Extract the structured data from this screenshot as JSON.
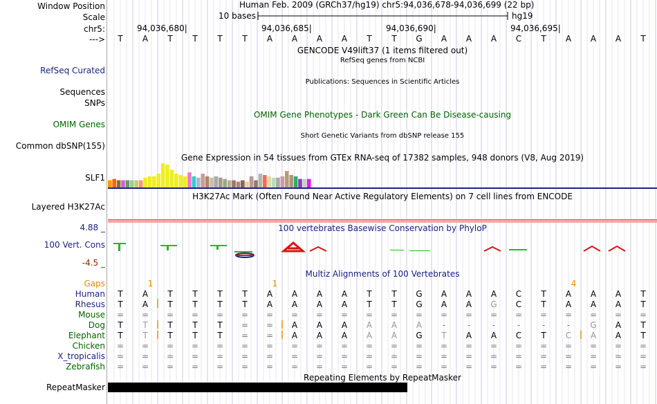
{
  "colors": {
    "navy": "#1a237e",
    "green": "#006400",
    "orange": "#e68a00",
    "red": "#dd1111",
    "divider": "#1a237e",
    "pink": "#f4a8a8"
  },
  "header": {
    "window_position_label": "Window Position",
    "window_position_value": "Human Feb. 2009 (GRCh37/hg19)   chr5:94,036,678-94,036,699 (22 bp)",
    "scale_label": "Scale",
    "scale_value": "10 bases",
    "scale_assembly": "hg19",
    "chrom_label": "chr5:",
    "coords": [
      "94,036,680",
      "94,036,685",
      "94,036,690",
      "94,036,695"
    ],
    "strand_label": "--->"
  },
  "reference_bases": [
    "T",
    "A",
    "T",
    "T",
    "T",
    "T",
    "A",
    "A",
    "A",
    "A",
    "T",
    "T",
    "G",
    "A",
    "A",
    "A",
    "C",
    "T",
    "A",
    "A",
    "A",
    "T"
  ],
  "tracks": {
    "gencode_title": "GENCODE V49lift37 (1 items filtered out)",
    "refseq_subtitle": "RefSeq genes from NCBI",
    "refseq_label": "RefSeq Curated",
    "publications_title": "Publications: Sequences in Scientific Articles",
    "sequences_label": "Sequences",
    "snps_label": "SNPs",
    "omim_title": "OMIM Gene Phenotypes - Dark Green Can Be Disease-causing",
    "omim_label": "OMIM Genes",
    "dbsnp_title": "Short Genetic Variants from dbSNP release 155",
    "dbsnp_label": "Common dbSNP(155)",
    "gtex_title": "Gene Expression in 54 tissues from GTEx RNA-seq of 17382 samples, 948 donors (V8, Aug 2019)",
    "gtex_gene_label": "SLF1",
    "gtex_colors": [
      "#ff9900",
      "#ff6600",
      "#996633",
      "#cc66cc",
      "#669966",
      "#99cc99",
      "#cccc66",
      "#ff9966",
      "#eeee22",
      "#eeee22",
      "#eeee22",
      "#eeee22",
      "#eeee22",
      "#eeee22",
      "#eeee22",
      "#eeee22",
      "#eeee22",
      "#eeee22",
      "#ee77cc",
      "#33cccc",
      "#aabbcc",
      "#cc9999",
      "#aa8866",
      "#ccbbaa",
      "#aaaaaa",
      "#aa9988",
      "#99aa88",
      "#bbaa99",
      "#997766",
      "#aa8877",
      "#886655",
      "#ffcc99",
      "#bb9999",
      "#997766",
      "#aabbaa",
      "#ff6655",
      "#ddddaa",
      "#bbddbb",
      "#aaaaaa",
      "#cc99aa",
      "#bb9977",
      "#aa9977",
      "#33aa66",
      "#8844aa",
      "#cccccc",
      "#dd22dd"
    ],
    "gtex_values": [
      0.3,
      0.35,
      0.3,
      0.3,
      0.3,
      0.3,
      0.3,
      0.3,
      0.4,
      0.45,
      0.45,
      0.55,
      0.95,
      0.9,
      0.7,
      0.55,
      0.5,
      0.45,
      0.6,
      0.45,
      0.4,
      0.55,
      0.45,
      0.4,
      0.45,
      0.4,
      0.35,
      0.3,
      0.3,
      0.25,
      0.3,
      0.25,
      0.45,
      0.3,
      0.55,
      0.5,
      0.45,
      0.4,
      0.4,
      0.45,
      0.65,
      0.5,
      0.45,
      0.35,
      0.35,
      0.35
    ],
    "h3k27_label": "Layered H3K27Ac",
    "h3k27_title": "H3K27Ac Mark (Often Found Near Active Regulatory Elements) on 7 cell lines from ENCODE",
    "cons_max": "4.88 _",
    "cons_min": "-4.5 _",
    "cons_label": "100 Vert. Cons",
    "cons_title": "100 vertebrates Basewise Conservation by PhyloP",
    "multiz_title": "Multiz Alignments of 100 Vertebrates",
    "repeat_title": "Repeating Elements by RepeatMasker",
    "repeat_label": "RepeatMasker"
  },
  "alignment": {
    "gaps_label": "Gaps",
    "gap_marks": [
      {
        "col": 1.6,
        "text": "1"
      },
      {
        "col": 6.6,
        "text": "1"
      },
      {
        "col": 18.6,
        "text": "4"
      }
    ],
    "species": [
      {
        "name": "Human",
        "color": "#1a237e",
        "bases": [
          "T",
          "A",
          "T",
          "T",
          "T",
          "T",
          "A",
          "A",
          "A",
          "A",
          "T",
          "T",
          "G",
          "A",
          "A",
          "A",
          "C",
          "T",
          "A",
          "A",
          "A",
          "T"
        ]
      },
      {
        "name": "Rhesus",
        "color": "#1a237e",
        "bases": [
          "T",
          "A",
          "T",
          "T",
          "T",
          "T",
          "A",
          "A",
          "A",
          "A",
          "T",
          "T",
          "G",
          "A",
          "A",
          "G",
          "C",
          "T",
          "A",
          "A",
          "A",
          "T"
        ]
      },
      {
        "name": "Mouse",
        "color": "#006400",
        "bases": [
          "=",
          "=",
          "=",
          "=",
          "=",
          "=",
          "=",
          "=",
          "=",
          "=",
          "=",
          "=",
          "=",
          "=",
          "=",
          "=",
          "=",
          "=",
          "=",
          "=",
          "=",
          "="
        ]
      },
      {
        "name": "Dog",
        "color": "#006400",
        "bases": [
          "T",
          "T",
          "T",
          "T",
          "T",
          "=",
          "=",
          "A",
          "A",
          "A",
          "A",
          "A",
          "A",
          "-",
          "-",
          "-",
          "-",
          "-",
          "-",
          "G",
          "A",
          "T"
        ]
      },
      {
        "name": "Elephant",
        "color": "#006400",
        "bases": [
          "T",
          "T",
          "T",
          "T",
          "T",
          "=",
          "=",
          "A",
          "A",
          "A",
          "A",
          "A",
          "G",
          "T",
          "A",
          "A",
          "C",
          "T",
          "C",
          "A",
          "A",
          "T"
        ]
      },
      {
        "name": "Chicken",
        "color": "#006400",
        "bases": [
          "=",
          "=",
          "=",
          "=",
          "=",
          "=",
          "=",
          "=",
          "=",
          "=",
          "=",
          "=",
          "=",
          "=",
          "=",
          "=",
          "=",
          "=",
          "=",
          "=",
          "=",
          "="
        ]
      },
      {
        "name": "X_tropicalis",
        "color": "#1a237e",
        "bases": [
          "=",
          "=",
          "=",
          "=",
          "=",
          "=",
          "=",
          "=",
          "=",
          "=",
          "=",
          "=",
          "=",
          "=",
          "=",
          "=",
          "=",
          "=",
          "=",
          "=",
          "=",
          "="
        ]
      },
      {
        "name": "Zebrafish",
        "color": "#006400",
        "bases": [
          "=",
          "=",
          "=",
          "=",
          "=",
          "=",
          "=",
          "=",
          "=",
          "=",
          "=",
          "=",
          "=",
          "=",
          "=",
          "=",
          "=",
          "=",
          "=",
          "=",
          "=",
          "="
        ]
      }
    ]
  }
}
